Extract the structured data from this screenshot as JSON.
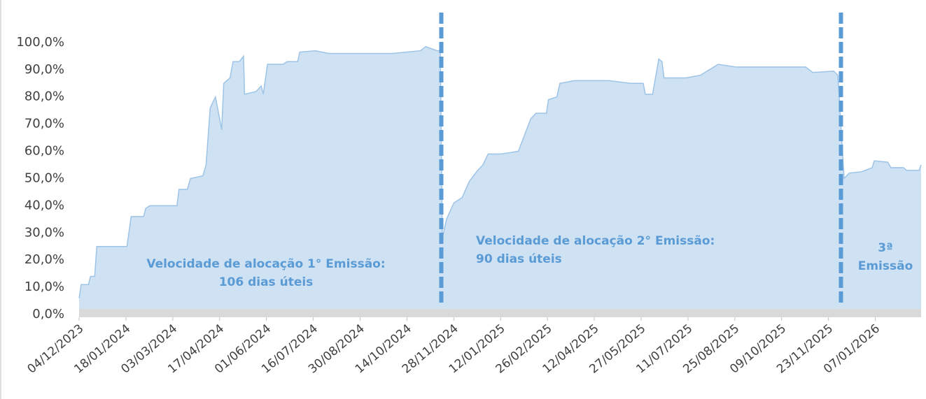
{
  "chart_data": {
    "type": "area",
    "x": [
      "04/12/2023",
      "06/12/2023",
      "13/12/2023",
      "15/12/2023",
      "19/12/2023",
      "21/12/2023",
      "19/01/2024",
      "23/01/2024",
      "04/02/2024",
      "06/02/2024",
      "10/02/2024",
      "07/03/2024",
      "09/03/2024",
      "17/03/2024",
      "20/03/2024",
      "01/04/2024",
      "04/04/2024",
      "08/04/2024",
      "13/04/2024",
      "19/04/2024",
      "21/04/2024",
      "27/04/2024",
      "30/04/2024",
      "06/05/2024",
      "10/05/2024",
      "11/05/2024",
      "22/05/2024",
      "27/05/2024",
      "29/05/2024",
      "02/06/2024",
      "17/06/2024",
      "21/06/2024",
      "01/07/2024",
      "03/07/2024",
      "18/07/2024",
      "31/07/2024",
      "20/08/2024",
      "30/09/2024",
      "27/10/2024",
      "01/11/2024",
      "12/11/2024",
      "15/11/2024",
      "17/11/2024",
      "21/11/2024",
      "28/11/2024",
      "06/12/2024",
      "13/12/2024",
      "21/12/2024",
      "26/12/2024",
      "31/12/2024",
      "12/01/2025",
      "29/01/2025",
      "02/02/2025",
      "10/02/2025",
      "15/02/2025",
      "25/02/2025",
      "27/02/2025",
      "07/03/2025",
      "10/03/2025",
      "24/03/2025",
      "26/04/2025",
      "17/05/2025",
      "29/05/2025",
      "31/05/2025",
      "07/06/2025",
      "13/06/2025",
      "16/06/2025",
      "18/06/2025",
      "09/07/2025",
      "23/07/2025",
      "09/08/2025",
      "26/08/2025",
      "29/09/2025",
      "01/11/2025",
      "08/11/2025",
      "28/11/2025",
      "02/12/2025",
      "08/12/2025",
      "13/12/2025",
      "25/12/2025",
      "04/01/2026",
      "06/01/2026",
      "19/01/2026",
      "22/01/2026",
      "03/02/2026",
      "06/02/2026",
      "18/02/2026",
      "20/02/2026"
    ],
    "series": [
      {
        "color": "#cfe2f3",
        "values": [
          6,
          11,
          11,
          14,
          14,
          25,
          25,
          36,
          36,
          39,
          40,
          40,
          46,
          46,
          50,
          51,
          55,
          76,
          80,
          68,
          85,
          87,
          93,
          93,
          95,
          81,
          82,
          84,
          81,
          92,
          92,
          93,
          93,
          96.5,
          97,
          96,
          96,
          96,
          97,
          98.5,
          97,
          97,
          28,
          35,
          41,
          43,
          49,
          53,
          55,
          59,
          59,
          60,
          64,
          72,
          74,
          74,
          79,
          80,
          85,
          86,
          86,
          85,
          85,
          81,
          81,
          94,
          93,
          87,
          87,
          88,
          92,
          91,
          91,
          91,
          89,
          89.5,
          88,
          50,
          52,
          52.5,
          54,
          56.5,
          56,
          54,
          54,
          53,
          53,
          55
        ]
      }
    ],
    "xlim": [
      "04/12/2023",
      "20/02/2026"
    ],
    "xticks": [
      "04/12/2023",
      "18/01/2024",
      "03/03/2024",
      "17/04/2024",
      "01/06/2024",
      "16/07/2024",
      "30/08/2024",
      "14/10/2024",
      "28/11/2024",
      "12/01/2025",
      "26/02/2025",
      "12/04/2025",
      "27/05/2025",
      "11/07/2025",
      "25/08/2025",
      "09/10/2025",
      "23/11/2025",
      "07/01/2026"
    ],
    "ylim": [
      0,
      110
    ],
    "yticks": [
      {
        "value": 0,
        "label": "0,0%"
      },
      {
        "value": 10,
        "label": "10,0%"
      },
      {
        "value": 20,
        "label": "20,0%"
      },
      {
        "value": 30,
        "label": "30,0%"
      },
      {
        "value": 40,
        "label": "40,0%"
      },
      {
        "value": 50,
        "label": "50,0%"
      },
      {
        "value": 60,
        "label": "60,0%"
      },
      {
        "value": 70,
        "label": "70,0%"
      },
      {
        "value": 80,
        "label": "80,0%"
      },
      {
        "value": 90,
        "label": "90,0%"
      },
      {
        "value": 100,
        "label": "100,0%"
      }
    ],
    "reference_lines": [
      {
        "x": "16/11/2024",
        "color": "#5b9bd5"
      },
      {
        "x": "05/12/2025",
        "color": "#5b9bd5"
      }
    ],
    "annotations": [
      {
        "lines": [
          "Velocidade de alocação 1° Emissão:",
          "106 dias úteis"
        ]
      },
      {
        "lines": [
          "Velocidade de alocação 2° Emissão:",
          "90 dias úteis"
        ]
      },
      {
        "lines": [
          "3ª",
          "Emissão"
        ]
      }
    ],
    "grid": false
  }
}
